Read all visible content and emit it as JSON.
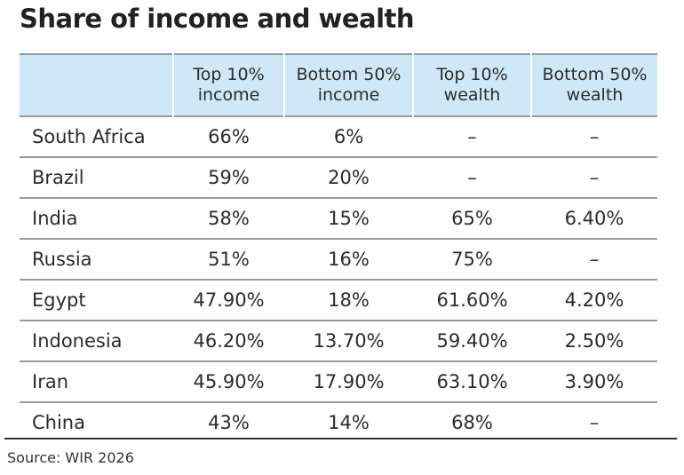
{
  "chart_data": {
    "type": "table",
    "title": "Share of income and wealth",
    "columns": [
      "",
      "Top 10% income",
      "Bottom 50% income",
      "Top 10% wealth",
      "Bottom 50% wealth"
    ],
    "columns_lines": [
      [
        "",
        ""
      ],
      [
        "Top 10%",
        "income"
      ],
      [
        "Bottom 50%",
        "income"
      ],
      [
        "Top 10%",
        "wealth"
      ],
      [
        "Bottom 50%",
        "wealth"
      ]
    ],
    "rows": [
      [
        "South Africa",
        "66%",
        "6%",
        "–",
        "–"
      ],
      [
        "Brazil",
        "59%",
        "20%",
        "–",
        "–"
      ],
      [
        "India",
        "58%",
        "15%",
        "65%",
        "6.40%"
      ],
      [
        "Russia",
        "51%",
        "16%",
        "75%",
        "–"
      ],
      [
        "Egypt",
        "47.90%",
        "18%",
        "61.60%",
        "4.20%"
      ],
      [
        "Indonesia",
        "46.20%",
        "13.70%",
        "59.40%",
        "2.50%"
      ],
      [
        "Iran",
        "45.90%",
        "17.90%",
        "63.10%",
        "3.90%"
      ],
      [
        "China",
        "43%",
        "14%",
        "68%",
        "–"
      ]
    ],
    "source": "Source: WIR 2026",
    "header_color": "#cfe8f7"
  }
}
